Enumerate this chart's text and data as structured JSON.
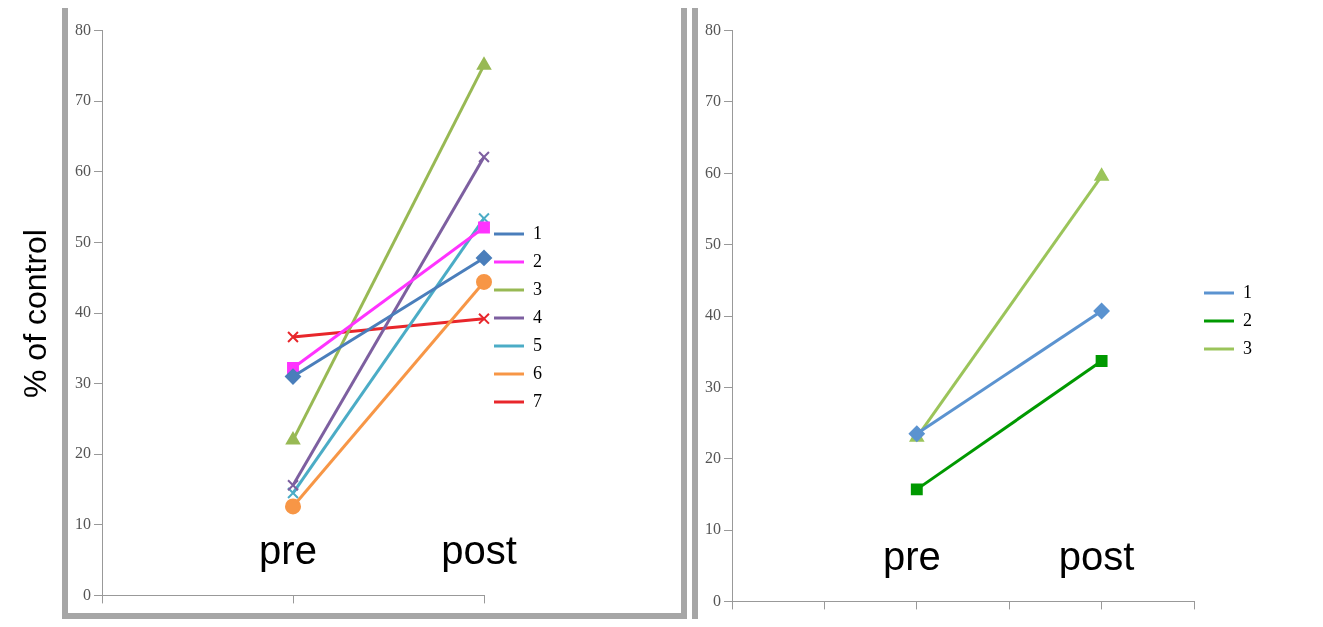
{
  "chart_data": [
    {
      "type": "line",
      "ylabel": "% of control",
      "categories": [
        null,
        "pre",
        "post"
      ],
      "ylim": [
        0,
        80
      ],
      "yticks": [
        0,
        10,
        20,
        30,
        40,
        50,
        60,
        70,
        80
      ],
      "grid": false,
      "legend": "right",
      "series": [
        {
          "name": "1",
          "color": "#4a7ebb",
          "marker": "diamond",
          "values": [
            null,
            31,
            47.8
          ]
        },
        {
          "name": "2",
          "color": "#ff33ff",
          "marker": "square",
          "values": [
            null,
            32.2,
            52.1
          ]
        },
        {
          "name": "3",
          "color": "#98b954",
          "marker": "triangle",
          "values": [
            null,
            22,
            75.1
          ]
        },
        {
          "name": "4",
          "color": "#7d5fa0",
          "marker": "cross",
          "values": [
            null,
            15.6,
            62.1
          ]
        },
        {
          "name": "5",
          "color": "#4bacc6",
          "marker": "cross",
          "values": [
            null,
            14.5,
            53.4
          ]
        },
        {
          "name": "6",
          "color": "#f79646",
          "marker": "circle",
          "values": [
            null,
            12.6,
            44.4
          ]
        },
        {
          "name": "7",
          "color": "#e8262b",
          "marker": "cross",
          "values": [
            null,
            36.6,
            39.2
          ]
        }
      ]
    },
    {
      "type": "line",
      "categories": [
        null,
        null,
        "pre",
        null,
        "post",
        null
      ],
      "ylim": [
        0,
        80
      ],
      "yticks": [
        0,
        10,
        20,
        30,
        40,
        50,
        60,
        70,
        80
      ],
      "grid": false,
      "legend": "right",
      "series": [
        {
          "name": "1",
          "color": "#5b93d0",
          "marker": "diamond",
          "values": [
            null,
            null,
            23.5,
            null,
            40.7,
            null
          ]
        },
        {
          "name": "2",
          "color": "#009900",
          "marker": "square",
          "values": [
            null,
            null,
            15.7,
            null,
            33.7,
            null
          ]
        },
        {
          "name": "3",
          "color": "#9bc45a",
          "marker": "triangle",
          "values": [
            null,
            null,
            23,
            null,
            59.6,
            null
          ]
        }
      ]
    }
  ]
}
